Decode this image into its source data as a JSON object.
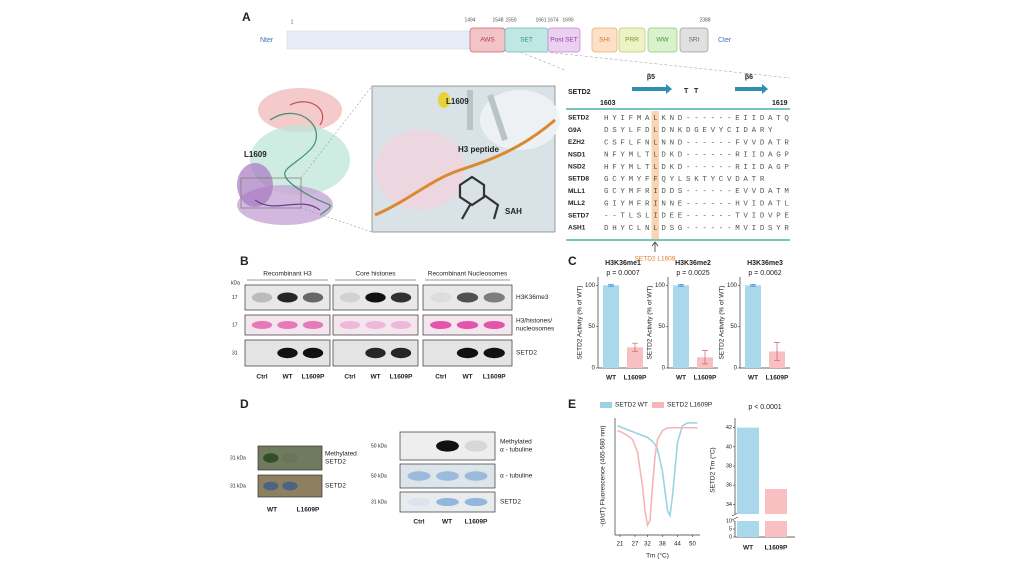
{
  "figure_labels": [
    "A",
    "B",
    "C",
    "D",
    "E"
  ],
  "panel_a": {
    "domain_map": {
      "n_term": "Nter",
      "c_term": "Cter",
      "positions": [
        "1",
        "1494",
        "1548",
        "1550",
        "1661",
        "1674",
        "1690",
        "2388"
      ],
      "domains": [
        "AWS",
        "SET",
        "Post SET",
        "SHI",
        "PRR",
        "WW",
        "SRI"
      ]
    },
    "structure": {
      "labels": [
        "L1609",
        "L1609",
        "H3 peptide",
        "SAH"
      ]
    },
    "alignment": {
      "ref": "SETD2",
      "strands": [
        "β5",
        "β6"
      ],
      "residue_marks": [
        "T",
        "T"
      ],
      "start": "1603",
      "end": "1619",
      "rows": [
        {
          "name": "SETD2",
          "seq": "HYIFMALKND------EIIDATQ"
        },
        {
          "name": "G9A",
          "seq": "DSYLFDLDNKDGEVYCIDARY"
        },
        {
          "name": "EZH2",
          "seq": "CSFLFNLNND------FVVDATR"
        },
        {
          "name": "NSD1",
          "seq": "NFYMLTLDKD------RIIDAGP"
        },
        {
          "name": "NSD2",
          "seq": "HFYMLTLDKD------RIIDAGP"
        },
        {
          "name": "SETD8",
          "seq": "GCYMYFFQYLSKTYCVDATR"
        },
        {
          "name": "MLL1",
          "seq": "GCYMFRIDDS------EVVDATM"
        },
        {
          "name": "MLL2",
          "seq": "GIYMFRINNE------HVIDATL"
        },
        {
          "name": "SETD7",
          "seq": "--TLSLIDEE------TVIDVPE"
        },
        {
          "name": "ASH1",
          "seq": "DHYCLNLDSG------MVIDSYR"
        }
      ],
      "mutation": "SETD2 L1609"
    }
  },
  "panel_b": {
    "kda_unit": "kDa",
    "groups": [
      "Recombinant H3",
      "Core histones",
      "Recombinant Nucleosomes"
    ],
    "kda": [
      "17",
      "17",
      "31"
    ],
    "rows": [
      [
        "H3K36me3"
      ],
      [
        "H3/histones/",
        "nucleosomes"
      ],
      [
        "SETD2"
      ]
    ],
    "lanes": [
      [
        "Ctrl",
        "WT",
        "L1609P"
      ],
      [
        "Ctrl",
        "WT",
        "L1609P"
      ],
      [
        "Ctrl",
        "WT",
        "L1609P"
      ]
    ]
  },
  "chart_data": [
    {
      "type": "bar",
      "title": "H3K36me1",
      "subtitle": "p = 0.0007",
      "ylabel": "SETD2 Activity (% of WT)",
      "categories": [
        "WT",
        "L1609P"
      ],
      "values": [
        100,
        25
      ],
      "errors": [
        1,
        5
      ],
      "colors": [
        "#a8d8ea",
        "#f8c0c0"
      ],
      "ylim": [
        0,
        110
      ],
      "yticks": [
        0,
        50,
        100
      ]
    },
    {
      "type": "bar",
      "title": "H3K36me2",
      "subtitle": "p = 0.0025",
      "ylabel": "SETD2 Activity (% of WT)",
      "categories": [
        "WT",
        "L1609P"
      ],
      "values": [
        100,
        13
      ],
      "errors": [
        1,
        8
      ],
      "colors": [
        "#a8d8ea",
        "#f8c0c0"
      ],
      "ylim": [
        0,
        110
      ],
      "yticks": [
        0,
        50,
        100
      ]
    },
    {
      "type": "bar",
      "title": "H3K36me3",
      "subtitle": "p = 0.0062",
      "ylabel": "SETD2 Activity (% of WT)",
      "categories": [
        "WT",
        "L1609P"
      ],
      "values": [
        100,
        20
      ],
      "errors": [
        1,
        11
      ],
      "colors": [
        "#a8d8ea",
        "#f8c0c0"
      ],
      "ylim": [
        0,
        110
      ],
      "yticks": [
        0,
        50,
        100
      ]
    },
    {
      "type": "line",
      "xlabel": "Tm (°C)",
      "ylabel": "-(d/dT) Fluorescence (465-580 nm)",
      "x": [
        20,
        22,
        24,
        26,
        28,
        30,
        31,
        32,
        33,
        34,
        35,
        36,
        38,
        40,
        41,
        42,
        44,
        46,
        48,
        50,
        52
      ],
      "series": [
        {
          "name": "SETD2 WT",
          "color": "#9ad4e4",
          "values": [
            0.02,
            0,
            -0.02,
            -0.04,
            -0.06,
            -0.08,
            -0.09,
            -0.1,
            -0.12,
            -0.14,
            -0.17,
            -0.22,
            -0.45,
            -0.85,
            -0.9,
            -0.7,
            -0.15,
            0.02,
            0.05,
            0.05,
            0.05
          ]
        },
        {
          "name": "SETD2 L1609P",
          "color": "#f7b5ba",
          "values": [
            -0.03,
            -0.05,
            -0.08,
            -0.12,
            -0.25,
            -0.6,
            -0.85,
            -1.0,
            -0.95,
            -0.6,
            -0.3,
            -0.12,
            -0.03,
            0,
            0,
            0,
            0,
            0,
            0,
            0,
            0
          ]
        }
      ],
      "xlim": [
        19,
        53
      ],
      "xticks": [
        21,
        27,
        32,
        38,
        44,
        50
      ],
      "ylim": [
        -1.1,
        0.1
      ]
    },
    {
      "type": "broken-bar",
      "subtitle": "p < 0.0001",
      "ylabel": "SETD2 Tm (°C)",
      "categories": [
        "WT",
        "L1609P"
      ],
      "values": [
        42,
        35.6
      ],
      "colors": [
        "#a8d8ea",
        "#f8c0c0"
      ],
      "segments": [
        {
          "ylim": [
            0,
            10
          ],
          "yticks": [
            0,
            5,
            10
          ]
        },
        {
          "ylim": [
            33,
            43
          ],
          "yticks": [
            34,
            36,
            38,
            40,
            42
          ]
        }
      ]
    }
  ],
  "panel_d": {
    "left": {
      "kda": [
        "31 kDa",
        "31 kDa"
      ],
      "rows": [
        [
          "Methylated",
          "SETD2"
        ],
        [
          "SETD2"
        ]
      ],
      "lanes": [
        "WT",
        "L1609P"
      ]
    },
    "right": {
      "kda": [
        "50 kDa",
        "50 kDa",
        "31 kDa"
      ],
      "rows": [
        [
          "Methylated",
          "α - tubuline"
        ],
        [
          "α - tubuline"
        ],
        [
          "SETD2"
        ]
      ],
      "lanes": [
        "Ctrl",
        "WT",
        "L1609P"
      ]
    }
  }
}
